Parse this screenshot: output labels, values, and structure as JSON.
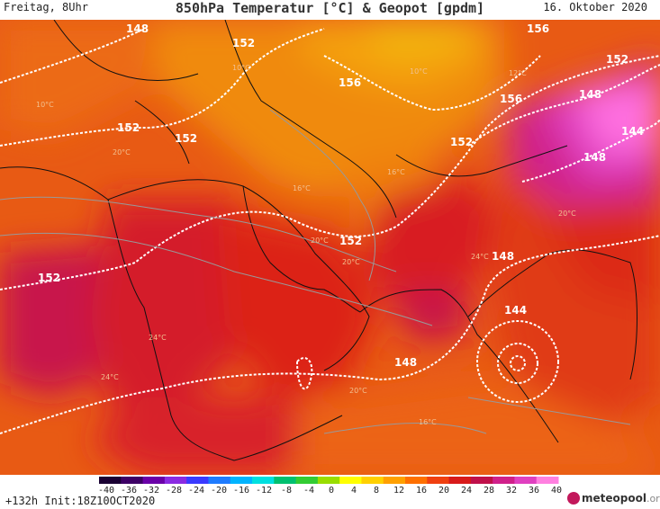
{
  "header": {
    "day_time": "Freitag, 8Uhr",
    "title": "850hPa Temperatur [°C] & Geopot [gpdm]",
    "date": "16. Oktober 2020"
  },
  "footer": {
    "run_info": "+132h Init:18Z10OCT2020",
    "logo_text": "meteopool",
    "logo_suffix": ".org"
  },
  "colorbar": {
    "labels": [
      "-40",
      "-36",
      "-32",
      "-28",
      "-24",
      "-20",
      "-16",
      "-12",
      "-8",
      "-4",
      "0",
      "4",
      "8",
      "12",
      "16",
      "20",
      "24",
      "28",
      "32",
      "36",
      "40"
    ],
    "colors": [
      "#1a0033",
      "#3d0066",
      "#6a00a8",
      "#8a2be2",
      "#3a3aff",
      "#1e7bff",
      "#00b4ff",
      "#00e0e0",
      "#00c070",
      "#33cc33",
      "#99dd00",
      "#ffff00",
      "#ffd000",
      "#ffa000",
      "#ff7000",
      "#f04010",
      "#d81a1a",
      "#c0104a",
      "#d0208a",
      "#e040c0",
      "#ff80e0"
    ]
  },
  "map": {
    "geopotential_labels": [
      {
        "text": "148"
      },
      {
        "text": "152"
      },
      {
        "text": "156"
      },
      {
        "text": "156"
      },
      {
        "text": "156"
      },
      {
        "text": "152"
      },
      {
        "text": "148"
      },
      {
        "text": "144"
      },
      {
        "text": "148"
      },
      {
        "text": "152"
      },
      {
        "text": "152"
      },
      {
        "text": "152"
      },
      {
        "text": "152"
      },
      {
        "text": "152"
      },
      {
        "text": "148"
      },
      {
        "text": "144"
      },
      {
        "text": "148"
      }
    ],
    "temperature_labels": [
      "10°C",
      "10°C",
      "10°C",
      "12°C",
      "16°C",
      "16°C",
      "20°C",
      "20°C",
      "20°C",
      "20°C",
      "24°C",
      "24°C",
      "24°C",
      "20°C",
      "16°C"
    ]
  }
}
